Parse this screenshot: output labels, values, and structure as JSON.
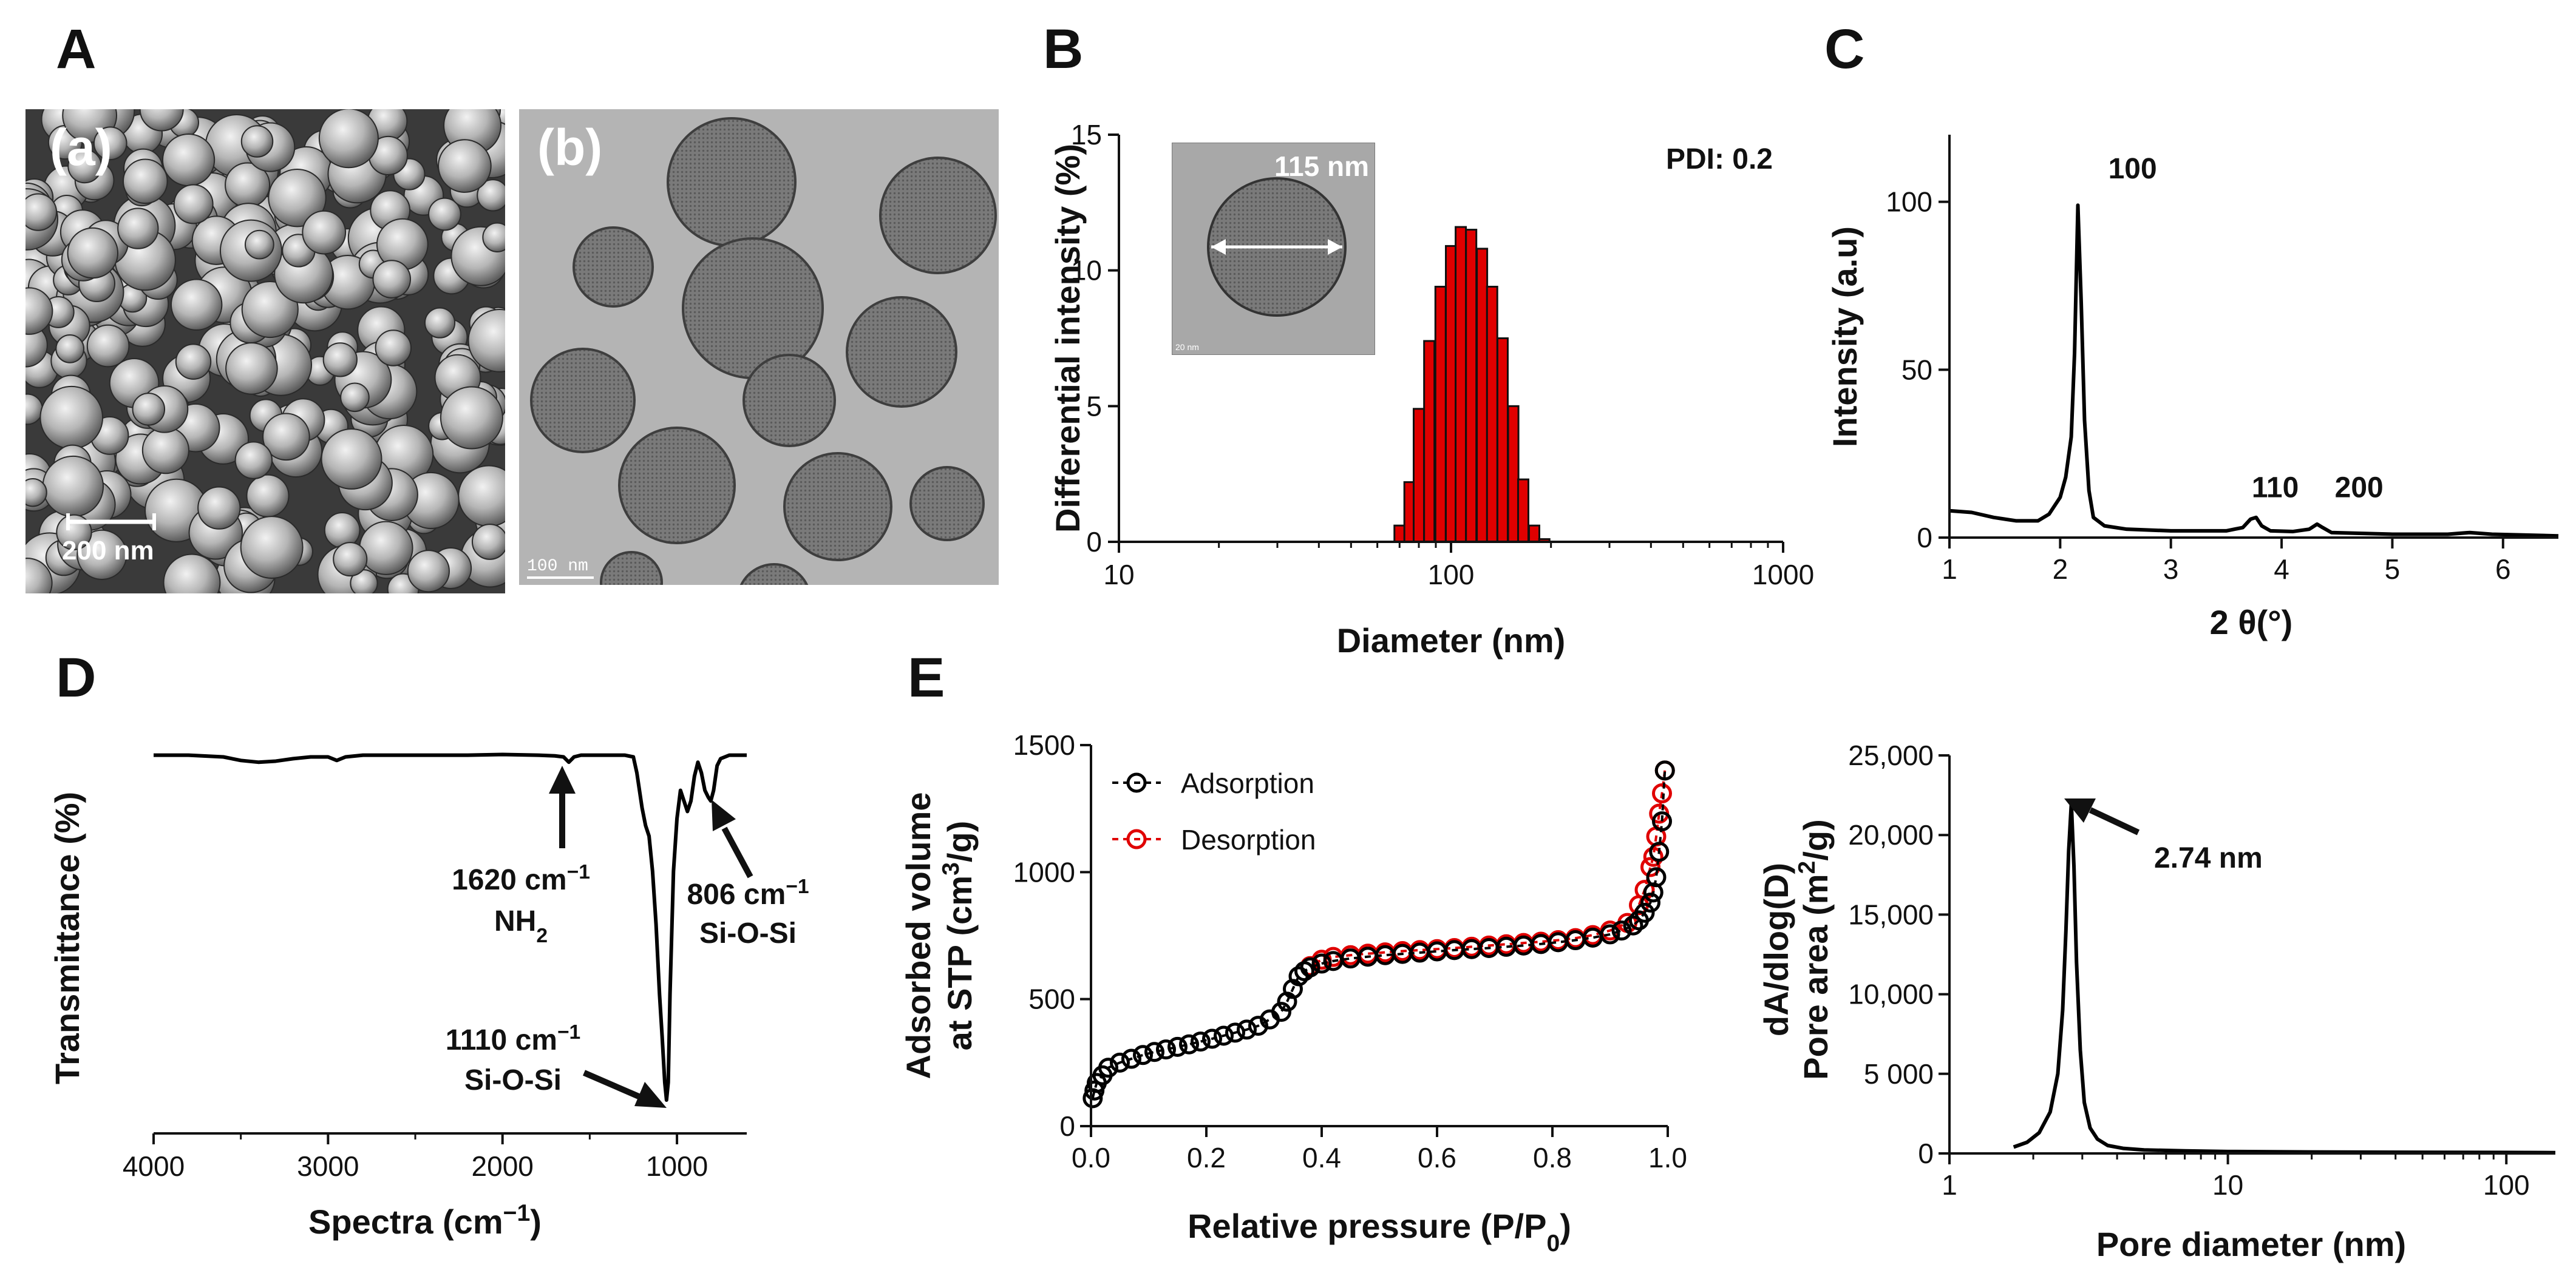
{
  "panel_labels": {
    "A": "A",
    "B": "B",
    "C": "C",
    "D": "D",
    "E": "E"
  },
  "panel_a": {
    "sem": {
      "label": "(a)",
      "scale_bar": "200 nm"
    },
    "tem": {
      "label": "(b)",
      "scale_bar": "100 nm"
    }
  },
  "chart_data": [
    {
      "id": "B",
      "type": "bar",
      "xscale": "log",
      "xlabel": "Diameter (nm)",
      "ylabel": "Differential intensity (%)",
      "xlim": [
        10,
        1000
      ],
      "ylim": [
        0,
        15
      ],
      "xticks": [
        "10",
        "100",
        "1000"
      ],
      "yticks": [
        "0",
        "5",
        "10",
        "15"
      ],
      "annotation": "PDI: 0.2",
      "inset_label": "115 nm",
      "inset_scale": "20 nm",
      "bar_color": "#e00000",
      "x": [
        70,
        75,
        80,
        86,
        93,
        100,
        107,
        115,
        124,
        133,
        143,
        154,
        165,
        178,
        191
      ],
      "values": [
        0.6,
        2.2,
        4.9,
        7.4,
        9.4,
        10.9,
        11.6,
        11.5,
        10.8,
        9.4,
        7.5,
        5.0,
        2.3,
        0.6,
        0.1
      ]
    },
    {
      "id": "C",
      "type": "line",
      "xlabel": "2 θ(°)",
      "ylabel": "Intensity (a.u)",
      "xlim": [
        1,
        6.5
      ],
      "ylim": [
        0,
        120
      ],
      "xticks": [
        "1",
        "2",
        "3",
        "4",
        "5",
        "6"
      ],
      "yticks": [
        "0",
        "50",
        "100"
      ],
      "peak_labels": [
        "100",
        "110",
        "200"
      ],
      "x": [
        1.0,
        1.2,
        1.4,
        1.6,
        1.8,
        1.9,
        2.0,
        2.05,
        2.1,
        2.13,
        2.16,
        2.19,
        2.22,
        2.26,
        2.3,
        2.4,
        2.6,
        3.0,
        3.5,
        3.65,
        3.72,
        3.77,
        3.82,
        3.9,
        4.1,
        4.25,
        4.32,
        4.37,
        4.45,
        5.0,
        5.5,
        5.7,
        5.9,
        6.5
      ],
      "y": [
        8,
        7.5,
        6,
        5,
        5,
        7,
        12,
        18,
        30,
        55,
        99,
        70,
        35,
        14,
        6,
        3.5,
        2.5,
        2,
        2,
        3,
        5.5,
        6,
        3.5,
        2,
        1.8,
        2.5,
        4,
        3,
        1.5,
        1,
        1,
        1.5,
        1,
        0.5
      ],
      "line_color": "#000000"
    },
    {
      "id": "D",
      "type": "line",
      "xlabel": "Spectra (cm⁻¹)",
      "ylabel": "Transmittance (%)",
      "xlim": [
        4000,
        600
      ],
      "ylim": [
        0,
        100
      ],
      "xticks": [
        "4000",
        "3000",
        "2000",
        "1000"
      ],
      "annotations": [
        "1620 cm⁻¹",
        "NH₂",
        "806 cm⁻¹",
        "Si-O-Si",
        "1110 cm⁻¹",
        "Si-O-Si"
      ],
      "x": [
        4000,
        3800,
        3600,
        3500,
        3400,
        3300,
        3200,
        3100,
        3000,
        2950,
        2900,
        2800,
        2600,
        2400,
        2200,
        2000,
        1800,
        1700,
        1650,
        1620,
        1590,
        1550,
        1400,
        1300,
        1250,
        1230,
        1200,
        1180,
        1160,
        1140,
        1120,
        1100,
        1085,
        1070,
        1060,
        1050,
        1040,
        1020,
        1000,
        980,
        960,
        940,
        920,
        900,
        880,
        860,
        840,
        820,
        806,
        790,
        770,
        750,
        700,
        650,
        600
      ],
      "y": [
        98,
        98,
        97.5,
        96.5,
        96,
        96.3,
        97,
        97.5,
        97.5,
        96.5,
        97.5,
        98,
        98,
        98,
        98,
        98.2,
        98,
        97.8,
        97.5,
        96,
        97.5,
        98,
        98,
        98,
        97.5,
        93,
        83,
        78,
        75,
        65,
        50,
        30,
        18,
        5,
        0,
        5,
        30,
        65,
        80,
        88,
        85,
        82,
        85,
        92,
        96,
        93,
        88,
        86,
        85,
        88,
        95,
        97,
        98,
        98,
        98
      ]
    },
    {
      "id": "E_isotherm",
      "type": "scatter",
      "xlabel": "Relative pressure (P/P0)",
      "ylabel": [
        "Adsorbed volume",
        "at STP (cm3/g)"
      ],
      "xlim": [
        0,
        1.0
      ],
      "ylim": [
        0,
        1500
      ],
      "xticks": [
        "0.0",
        "0.2",
        "0.4",
        "0.6",
        "0.8",
        "1.0"
      ],
      "yticks": [
        "0",
        "500",
        "1000",
        "1500"
      ],
      "legend_position": "top-left",
      "series": [
        {
          "name": "Adsorption",
          "color": "#000000",
          "x": [
            0.003,
            0.006,
            0.01,
            0.02,
            0.03,
            0.05,
            0.07,
            0.09,
            0.11,
            0.13,
            0.15,
            0.17,
            0.19,
            0.21,
            0.23,
            0.25,
            0.27,
            0.29,
            0.31,
            0.33,
            0.34,
            0.35,
            0.36,
            0.37,
            0.38,
            0.4,
            0.42,
            0.45,
            0.48,
            0.51,
            0.54,
            0.57,
            0.6,
            0.63,
            0.66,
            0.69,
            0.72,
            0.75,
            0.78,
            0.81,
            0.84,
            0.87,
            0.9,
            0.92,
            0.94,
            0.95,
            0.96,
            0.97,
            0.975,
            0.98,
            0.985,
            0.99,
            0.995
          ],
          "y": [
            110,
            140,
            170,
            200,
            230,
            250,
            265,
            280,
            292,
            302,
            312,
            322,
            333,
            344,
            356,
            368,
            380,
            395,
            420,
            450,
            490,
            540,
            590,
            610,
            625,
            640,
            650,
            660,
            667,
            673,
            678,
            683,
            688,
            693,
            697,
            701,
            706,
            711,
            717,
            724,
            732,
            742,
            755,
            770,
            790,
            810,
            840,
            880,
            920,
            980,
            1080,
            1200,
            1400
          ]
        },
        {
          "name": "Desorption",
          "color": "#e00000",
          "x": [
            0.995,
            0.99,
            0.985,
            0.98,
            0.975,
            0.97,
            0.96,
            0.95,
            0.93,
            0.9,
            0.87,
            0.84,
            0.81,
            0.78,
            0.75,
            0.72,
            0.69,
            0.66,
            0.63,
            0.6,
            0.57,
            0.54,
            0.51,
            0.48,
            0.45,
            0.42,
            0.4,
            0.38
          ],
          "y": [
            1400,
            1310,
            1230,
            1140,
            1060,
            1020,
            930,
            870,
            800,
            770,
            752,
            740,
            732,
            726,
            721,
            716,
            711,
            706,
            701,
            697,
            693,
            689,
            684,
            679,
            673,
            666,
            655,
            630
          ]
        }
      ]
    },
    {
      "id": "E_psd",
      "type": "line",
      "xscale": "log",
      "xlabel": "Pore diameter (nm)",
      "ylabel": [
        "dA/dlog(D)",
        "Pore area (m2/g)"
      ],
      "xlim": [
        1,
        150
      ],
      "ylim": [
        0,
        25000
      ],
      "xticks": [
        "1",
        "10",
        "100"
      ],
      "yticks": [
        "0",
        "5 000",
        "10,000",
        "15,000",
        "20,000",
        "25,000"
      ],
      "annotation": "2.74 nm",
      "x": [
        1.7,
        1.9,
        2.1,
        2.3,
        2.45,
        2.55,
        2.62,
        2.68,
        2.74,
        2.8,
        2.86,
        2.95,
        3.05,
        3.2,
        3.4,
        3.7,
        4.2,
        5,
        7,
        10,
        20,
        50,
        100,
        150
      ],
      "y": [
        400,
        700,
        1300,
        2600,
        5000,
        9000,
        14000,
        19000,
        22000,
        18000,
        12000,
        6500,
        3200,
        1600,
        900,
        500,
        320,
        220,
        160,
        120,
        90,
        70,
        60,
        50
      ]
    }
  ]
}
